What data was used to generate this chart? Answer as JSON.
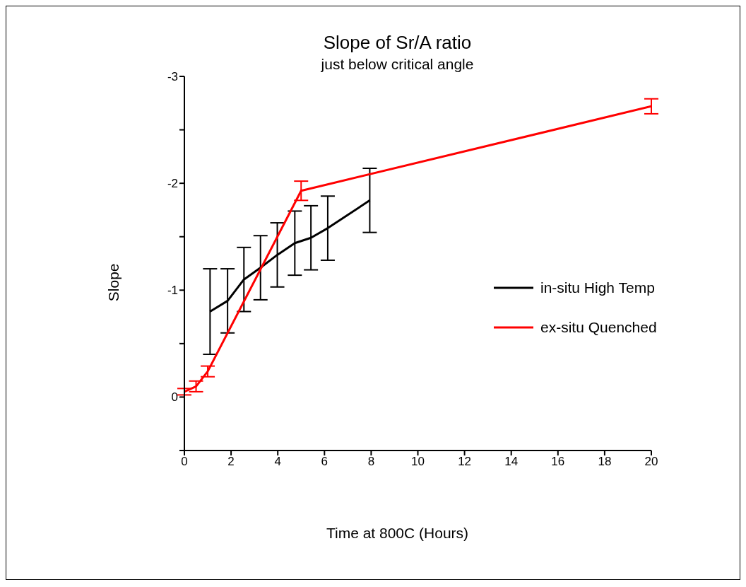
{
  "chart_data": {
    "type": "line",
    "title": "Slope of Sr/A ratio",
    "subtitle": "just below critical angle",
    "xlabel": "Time at 800C (Hours)",
    "ylabel": "Slope",
    "xlim": [
      0,
      20
    ],
    "xticks": [
      0,
      2,
      4,
      6,
      8,
      10,
      12,
      14,
      16,
      18,
      20
    ],
    "ylim": [
      0.5,
      -3
    ],
    "yticks": [
      {
        "value": 0.5,
        "label": null
      },
      0,
      {
        "value": -0.5,
        "label": null
      },
      -1,
      {
        "value": -1.5,
        "label": null
      },
      -2,
      {
        "value": -2.5,
        "label": null
      },
      -3
    ],
    "legend": "right",
    "marker": "none",
    "line_style": "solid",
    "series": [
      {
        "name": "in-situ High Temp",
        "color": "#000000",
        "x": [
          1.1,
          1.85,
          2.55,
          3.26,
          3.98,
          4.73,
          5.42,
          6.14,
          7.94
        ],
        "values": [
          -0.8,
          -0.9,
          -1.1,
          -1.21,
          -1.33,
          -1.44,
          -1.49,
          -1.58,
          -1.84
        ],
        "errors": [
          0.4,
          0.3,
          0.3,
          0.3,
          0.3,
          0.3,
          0.3,
          0.3,
          0.3
        ]
      },
      {
        "name": "ex-situ Quenched",
        "color": "#ff0000",
        "x": [
          0,
          0.5,
          1,
          5,
          20
        ],
        "values": [
          -0.05,
          -0.1,
          -0.24,
          -1.93,
          -2.72
        ],
        "errors": [
          0.03,
          0.05,
          0.05,
          0.09,
          0.07
        ]
      }
    ]
  }
}
